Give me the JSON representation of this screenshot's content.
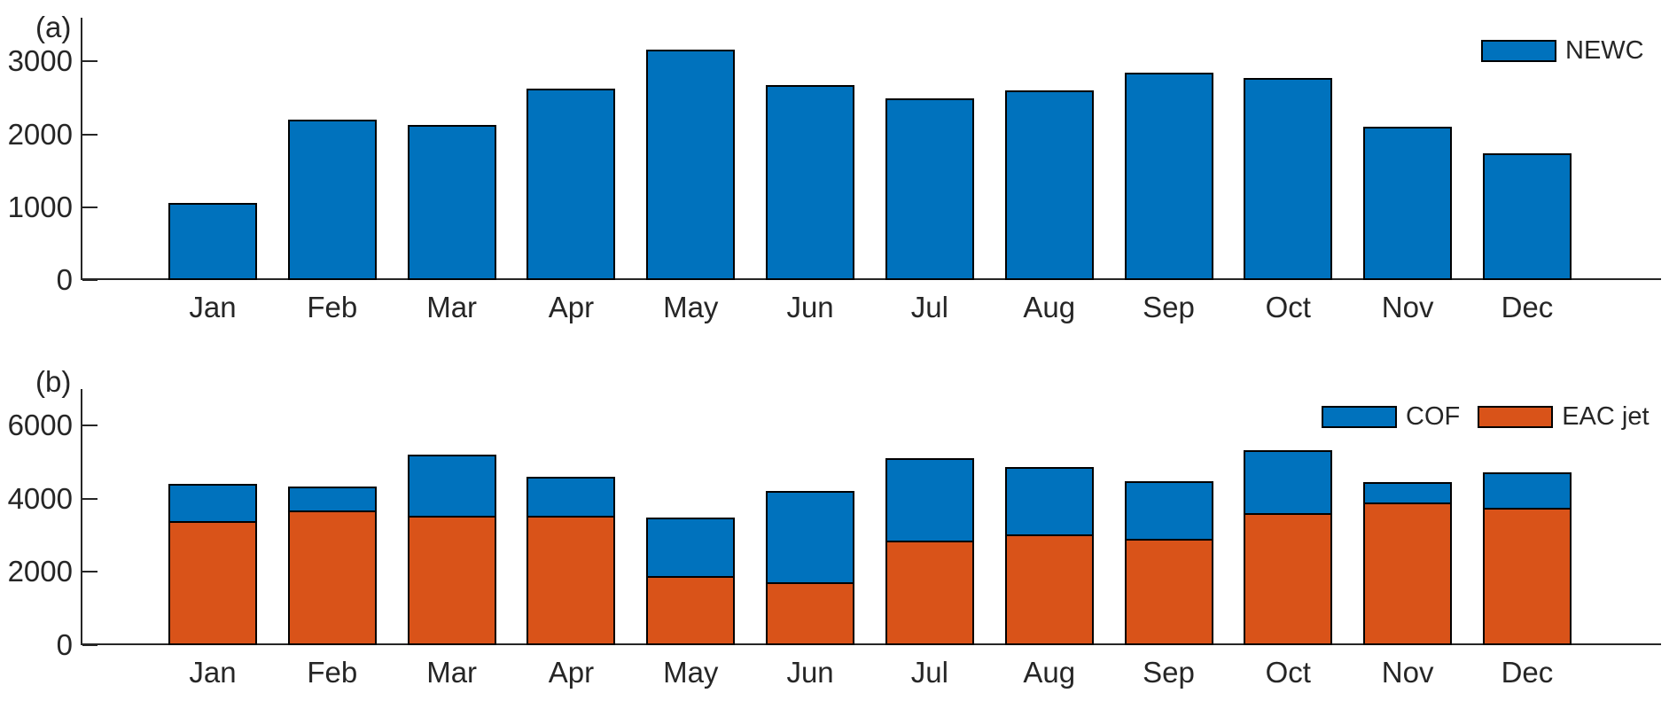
{
  "figure": {
    "background": "#ffffff",
    "text_color": "#262626",
    "axis_color": "#262626",
    "bar_edge_color": "#000000",
    "accent_blue": "#0072BD",
    "accent_orange": "#D95319"
  },
  "chart_data": [
    {
      "type": "bar",
      "panel": "(a)",
      "title": "",
      "xlabel": "",
      "ylabel": "",
      "stacked": false,
      "grid": false,
      "ylim": [
        0,
        3600
      ],
      "yticks": [
        0,
        1000,
        2000,
        3000
      ],
      "legend_position": "top-right",
      "categories": [
        "Jan",
        "Feb",
        "Mar",
        "Apr",
        "May",
        "Jun",
        "Jul",
        "Aug",
        "Sep",
        "Oct",
        "Nov",
        "Dec"
      ],
      "series": [
        {
          "name": "NEWC",
          "color": "#0072BD",
          "values": [
            1060,
            2200,
            2130,
            2630,
            3160,
            2680,
            2490,
            2600,
            2850,
            2770,
            2110,
            1740
          ]
        }
      ],
      "legend_entries": [
        "NEWC"
      ]
    },
    {
      "type": "bar",
      "panel": "(b)",
      "title": "",
      "xlabel": "",
      "ylabel": "",
      "stacked": true,
      "grid": false,
      "ylim": [
        0,
        7000
      ],
      "yticks": [
        0,
        2000,
        4000,
        6000
      ],
      "legend_position": "top-right",
      "categories": [
        "Jan",
        "Feb",
        "Mar",
        "Apr",
        "May",
        "Jun",
        "Jul",
        "Aug",
        "Sep",
        "Oct",
        "Nov",
        "Dec"
      ],
      "series": [
        {
          "name": "EAC jet",
          "color": "#D95319",
          "values": [
            3400,
            3690,
            3530,
            3540,
            1880,
            1720,
            2850,
            3030,
            2900,
            3600,
            3890,
            3750
          ]
        },
        {
          "name": "COF",
          "color": "#0072BD",
          "values": [
            1000,
            650,
            1670,
            1060,
            1600,
            2490,
            2260,
            1840,
            1570,
            1730,
            560,
            980
          ]
        }
      ],
      "legend_entries": [
        "COF",
        "EAC jet"
      ]
    }
  ]
}
